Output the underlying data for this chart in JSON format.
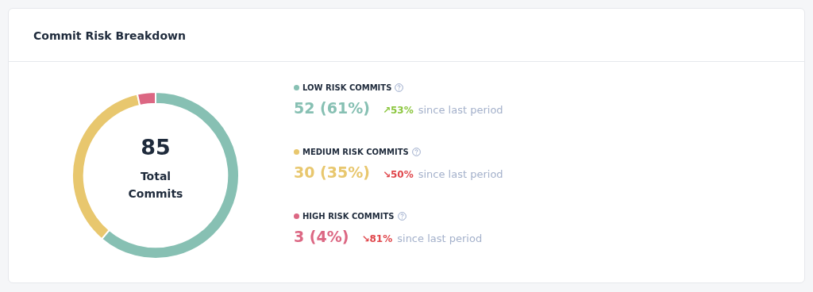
{
  "chart_data": {
    "type": "donut",
    "title": "Commit Risk Breakdown",
    "categories": [
      "LOW RISK COMMITS",
      "MEDIUM RISK COMMITS",
      "HIGH RISK COMMITS"
    ],
    "values": [
      52,
      30,
      3
    ],
    "colors": [
      "#87c0b3",
      "#e8c76e",
      "#dc6783"
    ],
    "value_labels": [
      "52 (61%)",
      "30 (35%)",
      "3 (4%)"
    ],
    "legend": "right",
    "annotations": [
      "85",
      "Total Commits",
      "↗53%",
      "since last period",
      "↘50%",
      "since last period",
      "↘81%",
      "since last period"
    ]
  }
}
